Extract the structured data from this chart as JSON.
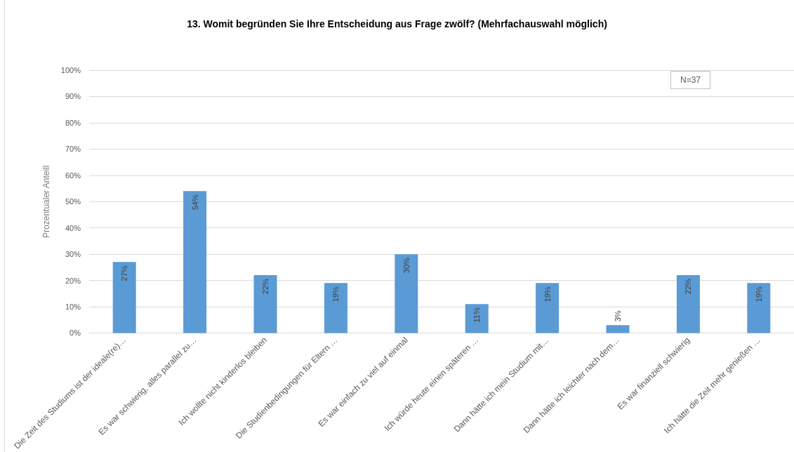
{
  "chart_data": {
    "type": "bar",
    "title": "13. Womit begründen Sie Ihre Entscheidung aus Frage zwölf? (Mehrfachauswahl möglich)",
    "ylabel": "Prozentualer Anteill",
    "annotations": [
      "N=37"
    ],
    "categories": [
      "Die Zeit des Studiums ist der ideale(re)…",
      "Es war schwierig, alles parallel zu…",
      "Ich wollte nicht kinderlos bleiben",
      "Die Studienbedingungen für Eltern …",
      "Es war einfach zu viel auf einmal",
      "Ich würde heute einen späteren …",
      "Dann hätte ich mein Studium mit…",
      "Dann hätte ich leichter nach dem…",
      "Es war finanziell schwierig",
      "Ich hätte die Zeit mehr genießen …"
    ],
    "values": [
      27,
      54,
      22,
      19,
      30,
      11,
      19,
      3,
      22,
      19
    ],
    "value_labels": [
      "27%",
      "54%",
      "22%",
      "19%",
      "30%",
      "11%",
      "19%",
      "3%",
      "22%",
      "19%"
    ],
    "color": "#5b9bd5",
    "ylim": [
      0,
      100
    ],
    "yticks": [
      {
        "value": 0,
        "label": "0%"
      },
      {
        "value": 10,
        "label": "10%"
      },
      {
        "value": 20,
        "label": "20%"
      },
      {
        "value": 30,
        "label": "30%"
      },
      {
        "value": 40,
        "label": "40%"
      },
      {
        "value": 50,
        "label": "50%"
      },
      {
        "value": 60,
        "label": "60%"
      },
      {
        "value": 70,
        "label": "70%"
      },
      {
        "value": 80,
        "label": "80%"
      },
      {
        "value": 90,
        "label": "90%"
      },
      {
        "value": 100,
        "label": "100%"
      }
    ],
    "grid": "y"
  }
}
